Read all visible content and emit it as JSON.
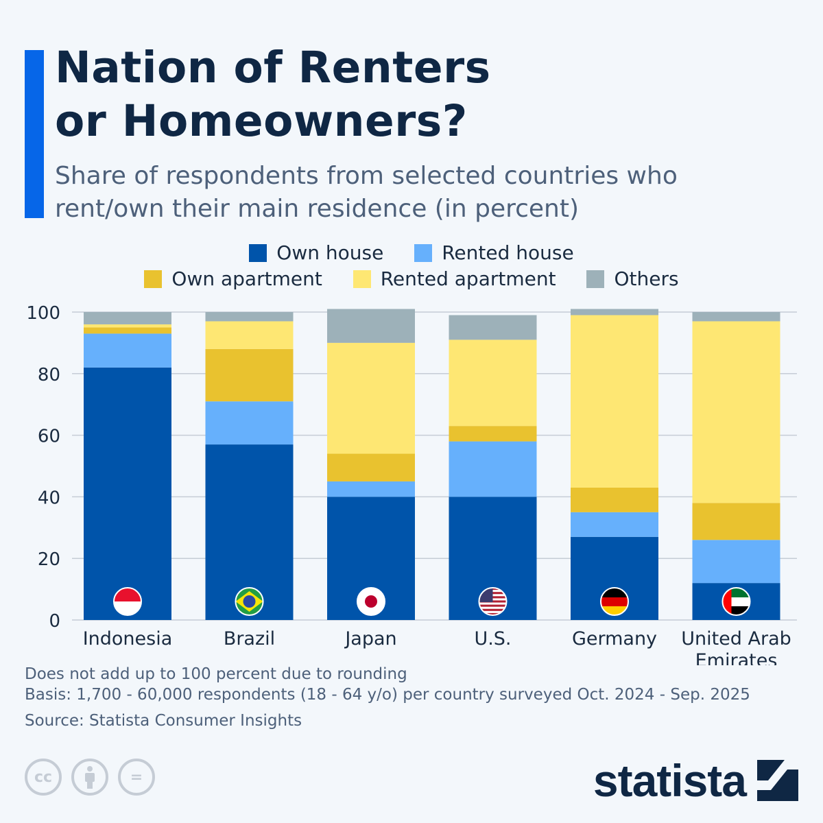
{
  "header": {
    "title_line1": "Nation of Renters",
    "title_line2": "or Homeowners?",
    "subtitle": "Share of respondents from selected countries who rent/own their main residence (in percent)"
  },
  "colors": {
    "accent": "#0666e8",
    "own_house": "#0054aa",
    "rented_house": "#66b0fc",
    "own_apartment": "#e9c22f",
    "rented_apartment": "#fee773",
    "others": "#9db1b9"
  },
  "chart_data": {
    "type": "bar",
    "stacked": true,
    "categories": [
      "Indonesia",
      "Brazil",
      "Japan",
      "U.S.",
      "Germany",
      "United Arab Emirates"
    ],
    "series": [
      {
        "name": "Own house",
        "color": "#0054aa",
        "values": [
          82,
          57,
          40,
          40,
          27,
          12
        ]
      },
      {
        "name": "Rented house",
        "color": "#66b0fc",
        "values": [
          11,
          14,
          5,
          18,
          8,
          14
        ]
      },
      {
        "name": "Own apartment",
        "color": "#e9c22f",
        "values": [
          2,
          17,
          9,
          5,
          8,
          12
        ]
      },
      {
        "name": "Rented apartment",
        "color": "#fee773",
        "values": [
          1,
          9,
          36,
          28,
          56,
          59
        ]
      },
      {
        "name": "Others",
        "color": "#9db1b9",
        "values": [
          4,
          3,
          11,
          8,
          2,
          3
        ]
      }
    ],
    "yticks": [
      0,
      20,
      40,
      60,
      80,
      100
    ],
    "ylim": [
      0,
      100
    ],
    "grid": true,
    "legend": "top",
    "flags": [
      "indonesia-flag",
      "brazil-flag",
      "japan-flag",
      "us-flag",
      "germany-flag",
      "uae-flag"
    ]
  },
  "legend": {
    "row1": [
      "Own house",
      "Rented house"
    ],
    "row2": [
      "Own apartment",
      "Rented apartment",
      "Others"
    ]
  },
  "footer": {
    "note1": "Does not add up to 100 percent due to rounding",
    "note2": "Basis: 1,700 - 60,000 respondents (18 - 64 y/o) per country surveyed Oct. 2024 - Sep. 2025",
    "source": "Source: Statista Consumer Insights",
    "cc_label": "cc",
    "eq_label": "=",
    "logo": "statista"
  }
}
